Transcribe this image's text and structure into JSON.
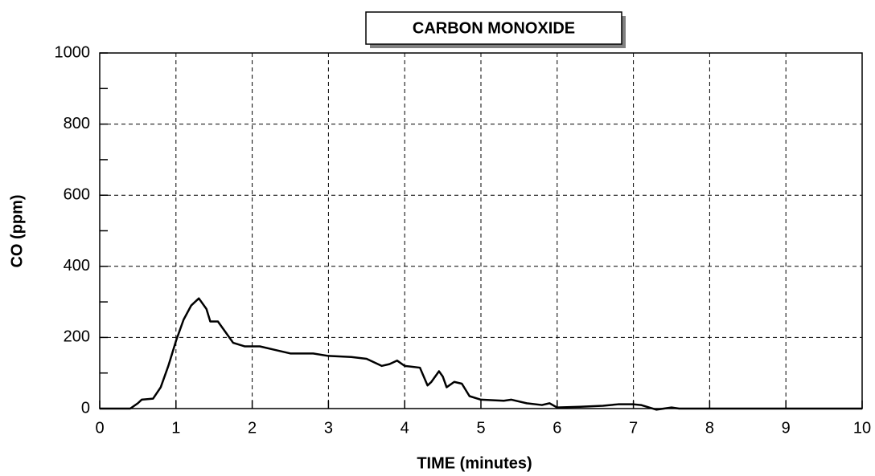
{
  "chart_data": {
    "type": "line",
    "title": "CARBON MONOXIDE",
    "xlabel": "TIME (minutes)",
    "ylabel": "CO (ppm)",
    "x": [
      0,
      0.4,
      0.5,
      0.55,
      0.7,
      0.8,
      0.9,
      1.0,
      1.1,
      1.2,
      1.3,
      1.4,
      1.45,
      1.55,
      1.65,
      1.75,
      1.9,
      2.1,
      2.3,
      2.5,
      2.8,
      3.0,
      3.3,
      3.5,
      3.7,
      3.8,
      3.9,
      4.0,
      4.2,
      4.3,
      4.35,
      4.4,
      4.45,
      4.5,
      4.55,
      4.65,
      4.75,
      4.85,
      5.0,
      5.3,
      5.4,
      5.6,
      5.8,
      5.9,
      6.0,
      6.3,
      6.6,
      6.8,
      7.0,
      7.1,
      7.3,
      7.5,
      7.6,
      10
    ],
    "series": [
      {
        "name": "CO",
        "color": "#000000",
        "values": [
          0,
          0,
          15,
          25,
          28,
          60,
          120,
          190,
          250,
          290,
          310,
          280,
          245,
          245,
          215,
          185,
          175,
          175,
          165,
          155,
          155,
          148,
          145,
          140,
          120,
          125,
          135,
          120,
          115,
          65,
          75,
          90,
          105,
          90,
          60,
          75,
          70,
          35,
          25,
          22,
          25,
          15,
          10,
          15,
          3,
          5,
          8,
          12,
          12,
          10,
          -3,
          3,
          0,
          0
        ]
      }
    ],
    "xlim": [
      0,
      10
    ],
    "xticks": [
      0,
      1,
      2,
      3,
      4,
      5,
      6,
      7,
      8,
      9,
      10
    ],
    "ylim": [
      0,
      1000
    ],
    "yticks": [
      0,
      200,
      400,
      600,
      800,
      1000
    ],
    "y_minor_ticks": [
      100,
      300,
      500,
      700,
      900
    ],
    "grid": true
  }
}
